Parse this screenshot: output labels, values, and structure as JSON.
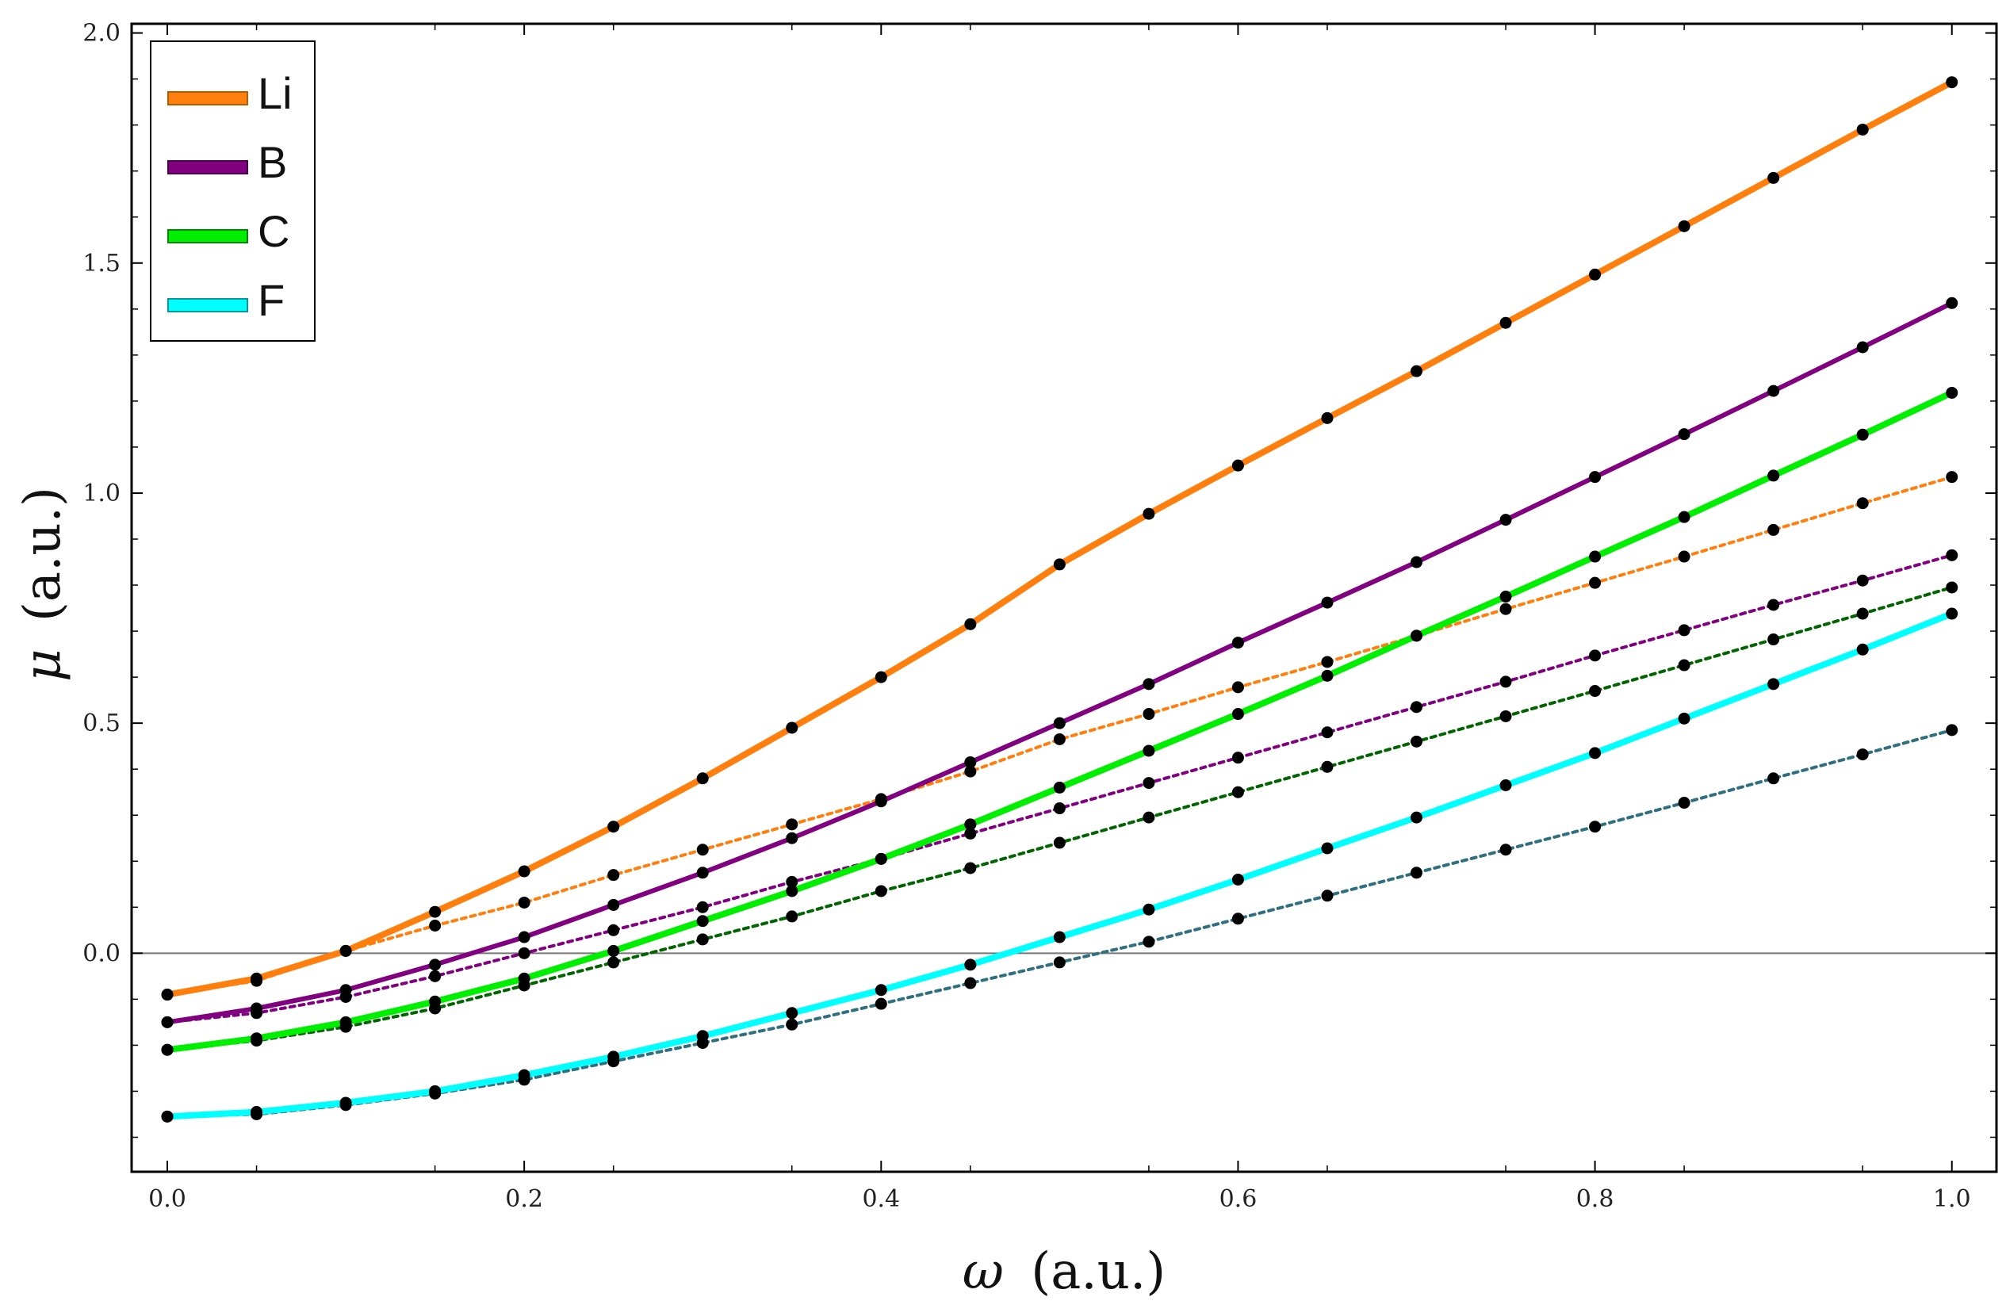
{
  "chart_data": {
    "type": "line",
    "xlabel_symbol": "ω",
    "xlabel_unit": "(a.u.)",
    "ylabel_symbol": "μ",
    "ylabel_unit": "(a.u.)",
    "xlim": [
      -0.02,
      1.025
    ],
    "ylim": [
      -0.475,
      2.02
    ],
    "x_ticks": [
      0.0,
      0.2,
      0.4,
      0.6,
      0.8,
      1.0
    ],
    "x_tick_labels": [
      "0.0",
      "0.2",
      "0.4",
      "0.6",
      "0.8",
      "1.0"
    ],
    "y_ticks": [
      0.0,
      0.5,
      1.0,
      1.5,
      2.0
    ],
    "y_tick_labels": [
      "0.0",
      "0.5",
      "1.0",
      "1.5",
      "2.0"
    ],
    "zero_line": true,
    "legend_placement": "top-left",
    "legend": [
      "Li",
      "B",
      "C",
      "F"
    ],
    "x": [
      0.0,
      0.05,
      0.1,
      0.15,
      0.2,
      0.25,
      0.3,
      0.35,
      0.4,
      0.45,
      0.5,
      0.55,
      0.6,
      0.65,
      0.7,
      0.75,
      0.8,
      0.85,
      0.9,
      0.95,
      1.0
    ],
    "series": [
      {
        "name": "Li",
        "style": "solid",
        "color": "#ff7f0e",
        "values": [
          -0.09,
          -0.055,
          0.005,
          0.09,
          0.178,
          0.275,
          0.38,
          0.49,
          0.6,
          0.715,
          0.845,
          0.955,
          1.06,
          1.163,
          1.265,
          1.37,
          1.475,
          1.58,
          1.685,
          1.79,
          1.893
        ]
      },
      {
        "name": "B",
        "style": "solid",
        "color": "#800080",
        "values": [
          -0.15,
          -0.12,
          -0.08,
          -0.025,
          0.035,
          0.105,
          0.175,
          0.25,
          0.33,
          0.415,
          0.5,
          0.585,
          0.675,
          0.762,
          0.85,
          0.942,
          1.035,
          1.128,
          1.222,
          1.317,
          1.413
        ]
      },
      {
        "name": "C",
        "style": "solid",
        "color": "#00ee00",
        "values": [
          -0.21,
          -0.185,
          -0.15,
          -0.105,
          -0.055,
          0.005,
          0.07,
          0.135,
          0.205,
          0.28,
          0.36,
          0.44,
          0.52,
          0.603,
          0.69,
          0.775,
          0.862,
          0.948,
          1.038,
          1.127,
          1.218
        ]
      },
      {
        "name": "F",
        "style": "solid",
        "color": "#00ffff",
        "values": [
          -0.355,
          -0.345,
          -0.325,
          -0.3,
          -0.265,
          -0.225,
          -0.18,
          -0.13,
          -0.08,
          -0.025,
          0.035,
          0.095,
          0.16,
          0.228,
          0.295,
          0.365,
          0.435,
          0.51,
          0.585,
          0.66,
          0.738
        ]
      },
      {
        "style": "dotted",
        "color": "#ff7f0e",
        "values": [
          -0.09,
          -0.06,
          0.005,
          0.06,
          0.11,
          0.17,
          0.225,
          0.28,
          0.335,
          0.395,
          0.465,
          0.52,
          0.578,
          0.633,
          0.69,
          0.748,
          0.805,
          0.862,
          0.92,
          0.978,
          1.035
        ]
      },
      {
        "style": "dotted",
        "color": "#800080",
        "values": [
          -0.15,
          -0.13,
          -0.095,
          -0.05,
          0.0,
          0.05,
          0.1,
          0.155,
          0.205,
          0.26,
          0.315,
          0.37,
          0.425,
          0.48,
          0.535,
          0.59,
          0.647,
          0.702,
          0.757,
          0.81,
          0.865
        ]
      },
      {
        "style": "dotted",
        "color": "#006400",
        "values": [
          -0.21,
          -0.19,
          -0.16,
          -0.12,
          -0.07,
          -0.02,
          0.03,
          0.08,
          0.135,
          0.185,
          0.24,
          0.295,
          0.35,
          0.405,
          0.46,
          0.515,
          0.57,
          0.626,
          0.682,
          0.738,
          0.795
        ]
      },
      {
        "style": "dotted",
        "color": "#2f6f7f",
        "values": [
          -0.355,
          -0.35,
          -0.33,
          -0.305,
          -0.275,
          -0.235,
          -0.195,
          -0.155,
          -0.11,
          -0.065,
          -0.02,
          0.025,
          0.075,
          0.125,
          0.175,
          0.225,
          0.275,
          0.327,
          0.38,
          0.432,
          0.485
        ]
      }
    ]
  }
}
